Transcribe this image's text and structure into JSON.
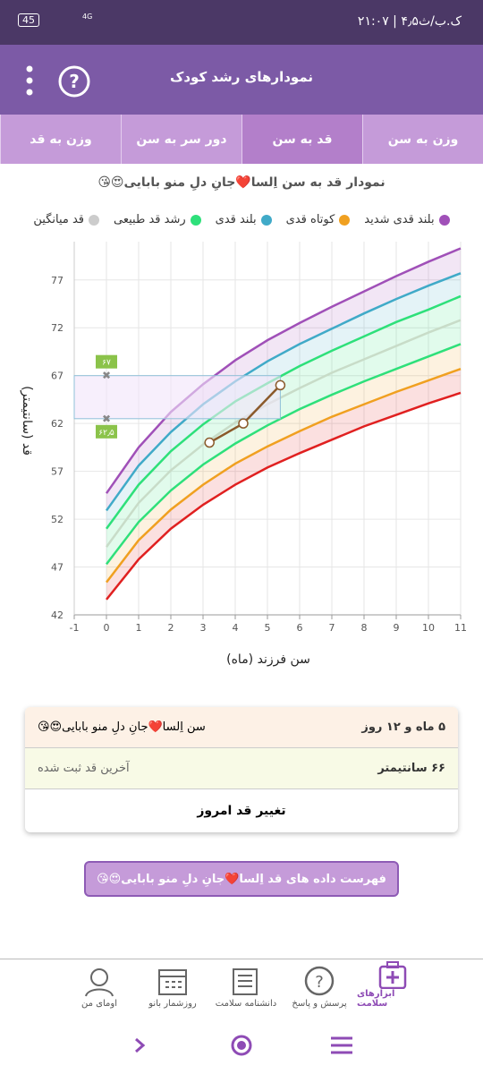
{
  "status_bar": {
    "time": "۲۱:۰۷ | ۴٫۵ک.ب/ث",
    "battery": "45",
    "network": "4G"
  },
  "header": {
    "title": "نمودارهای رشد کودک"
  },
  "tabs": [
    "وزن به سن",
    "قد به سن",
    "دور سر به سن",
    "وزن به قد"
  ],
  "selected_tab": 1,
  "chart_data": {
    "type": "line",
    "title": "نمودار قد به سن اِلسا❤️جانِ دلِ منو بابایی😍😘",
    "legend": [
      {
        "label": "بلند قدی شدید",
        "color": "#a050b8"
      },
      {
        "label": "کوتاه قدی",
        "color": "#f0a020"
      },
      {
        "label": "بلند قدی",
        "color": "#40aac8"
      },
      {
        "label": "رشد قد طبیعی",
        "color": "#2ee07a"
      },
      {
        "label": "قد میانگین",
        "color": "#cccccc"
      }
    ],
    "x_label": "سن فرزند (ماه)",
    "y_label": "قد (سانتیمتر)",
    "x": [
      0,
      1,
      2,
      3,
      4,
      5,
      6,
      7,
      8,
      9,
      10,
      11
    ],
    "series": [
      {
        "color": "#e02020",
        "values": [
          43.6,
          47.8,
          51.0,
          53.5,
          55.6,
          57.4,
          58.9,
          60.3,
          61.7,
          62.9,
          64.1,
          65.2
        ]
      },
      {
        "color": "#f0a020",
        "values": [
          45.4,
          49.8,
          53.0,
          55.6,
          57.8,
          59.6,
          61.2,
          62.7,
          64.0,
          65.3,
          66.5,
          67.7
        ]
      },
      {
        "color": "#2ee07a",
        "values": [
          47.3,
          51.7,
          55.0,
          57.7,
          59.9,
          61.8,
          63.5,
          65.0,
          66.4,
          67.7,
          69.0,
          70.3
        ]
      },
      {
        "color": "#c8dcc8",
        "values": [
          49.1,
          53.7,
          57.1,
          59.8,
          62.1,
          64.0,
          65.7,
          67.3,
          68.7,
          70.1,
          71.5,
          72.8
        ]
      },
      {
        "color": "#2ee07a",
        "values": [
          51.0,
          55.6,
          59.1,
          61.9,
          64.3,
          66.2,
          68.0,
          69.6,
          71.1,
          72.6,
          73.9,
          75.3
        ]
      },
      {
        "color": "#40aac8",
        "values": [
          52.9,
          57.6,
          61.1,
          64.0,
          66.4,
          68.5,
          70.3,
          71.9,
          73.5,
          75.0,
          76.4,
          77.7
        ]
      },
      {
        "color": "#a050b8",
        "values": [
          54.7,
          59.5,
          63.2,
          66.1,
          68.6,
          70.7,
          72.5,
          74.2,
          75.8,
          77.4,
          78.9,
          80.3
        ]
      }
    ],
    "child": {
      "color": "#8b5a2b",
      "x": [
        3.2,
        4.25,
        5.4
      ],
      "values": [
        60,
        62,
        66
      ]
    },
    "annotations": [
      {
        "value": 67,
        "label": "۶۷"
      },
      {
        "value": 62.5,
        "label": "۶۲٫۵"
      }
    ],
    "xlim": [
      -1,
      11
    ],
    "xticks": [
      -1,
      0,
      1,
      2,
      3,
      4,
      5,
      6,
      7,
      8,
      9,
      10,
      11
    ],
    "ylim": [
      42,
      81
    ],
    "yticks": [
      42,
      47,
      52,
      57,
      62,
      67,
      72,
      77
    ],
    "grid": true
  },
  "summary": {
    "rows": [
      [
        "سن اِلسا❤️جانِ دلِ منو بابایی😍😘",
        "۵ ماه و ۱۲ روز"
      ],
      [
        "آخرین قد ثبت شده",
        "۶۶ سانتیمتر"
      ]
    ],
    "button": "تغییر قد امروز"
  },
  "list_button": "فهرست داده های قد اِلسا❤️جانِ دلِ منو بابایی😍😘",
  "bottom_nav": [
    "ابزارهای سلامت",
    "پرسش و پاسخ",
    "دانشنامه سلامت",
    "روزشمار بانو",
    "اومای من"
  ]
}
